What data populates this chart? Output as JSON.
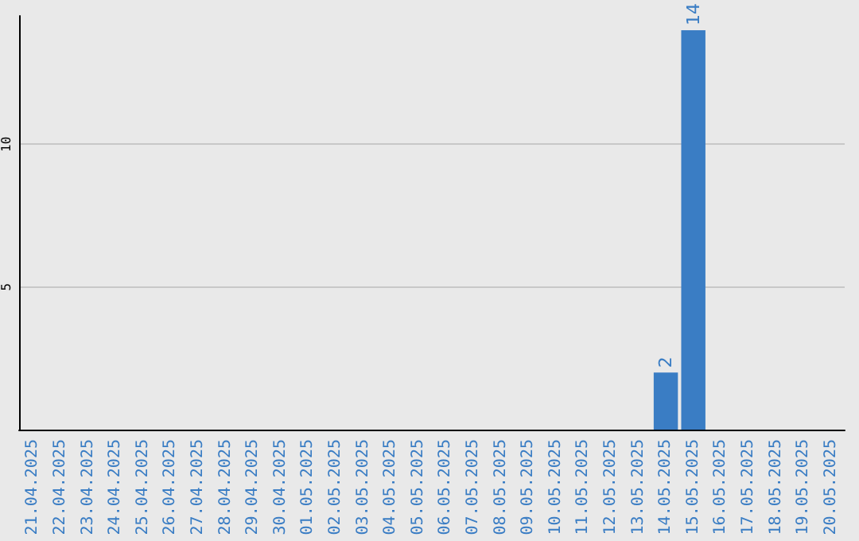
{
  "chart_data": {
    "type": "bar",
    "categories": [
      "21.04.2025",
      "22.04.2025",
      "23.04.2025",
      "24.04.2025",
      "25.04.2025",
      "26.04.2025",
      "27.04.2025",
      "28.04.2025",
      "29.04.2025",
      "30.04.2025",
      "01.05.2025",
      "02.05.2025",
      "03.05.2025",
      "04.05.2025",
      "05.05.2025",
      "06.05.2025",
      "07.05.2025",
      "08.05.2025",
      "09.05.2025",
      "10.05.2025",
      "11.05.2025",
      "12.05.2025",
      "13.05.2025",
      "14.05.2025",
      "15.05.2025",
      "16.05.2025",
      "17.05.2025",
      "18.05.2025",
      "19.05.2025",
      "20.05.2025"
    ],
    "values": [
      0,
      0,
      0,
      0,
      0,
      0,
      0,
      0,
      0,
      0,
      0,
      0,
      0,
      0,
      0,
      0,
      0,
      0,
      0,
      0,
      0,
      0,
      0,
      2,
      14,
      0,
      0,
      0,
      0,
      0
    ],
    "value_labels": [
      null,
      null,
      null,
      null,
      null,
      null,
      null,
      null,
      null,
      null,
      null,
      null,
      null,
      null,
      null,
      null,
      null,
      null,
      null,
      null,
      null,
      null,
      null,
      "2",
      "14",
      null,
      null,
      null,
      null,
      null
    ],
    "color": "#3a7dc4",
    "ylim": [
      0,
      14.5
    ],
    "yticks": [
      5,
      10
    ],
    "grid": "y"
  }
}
